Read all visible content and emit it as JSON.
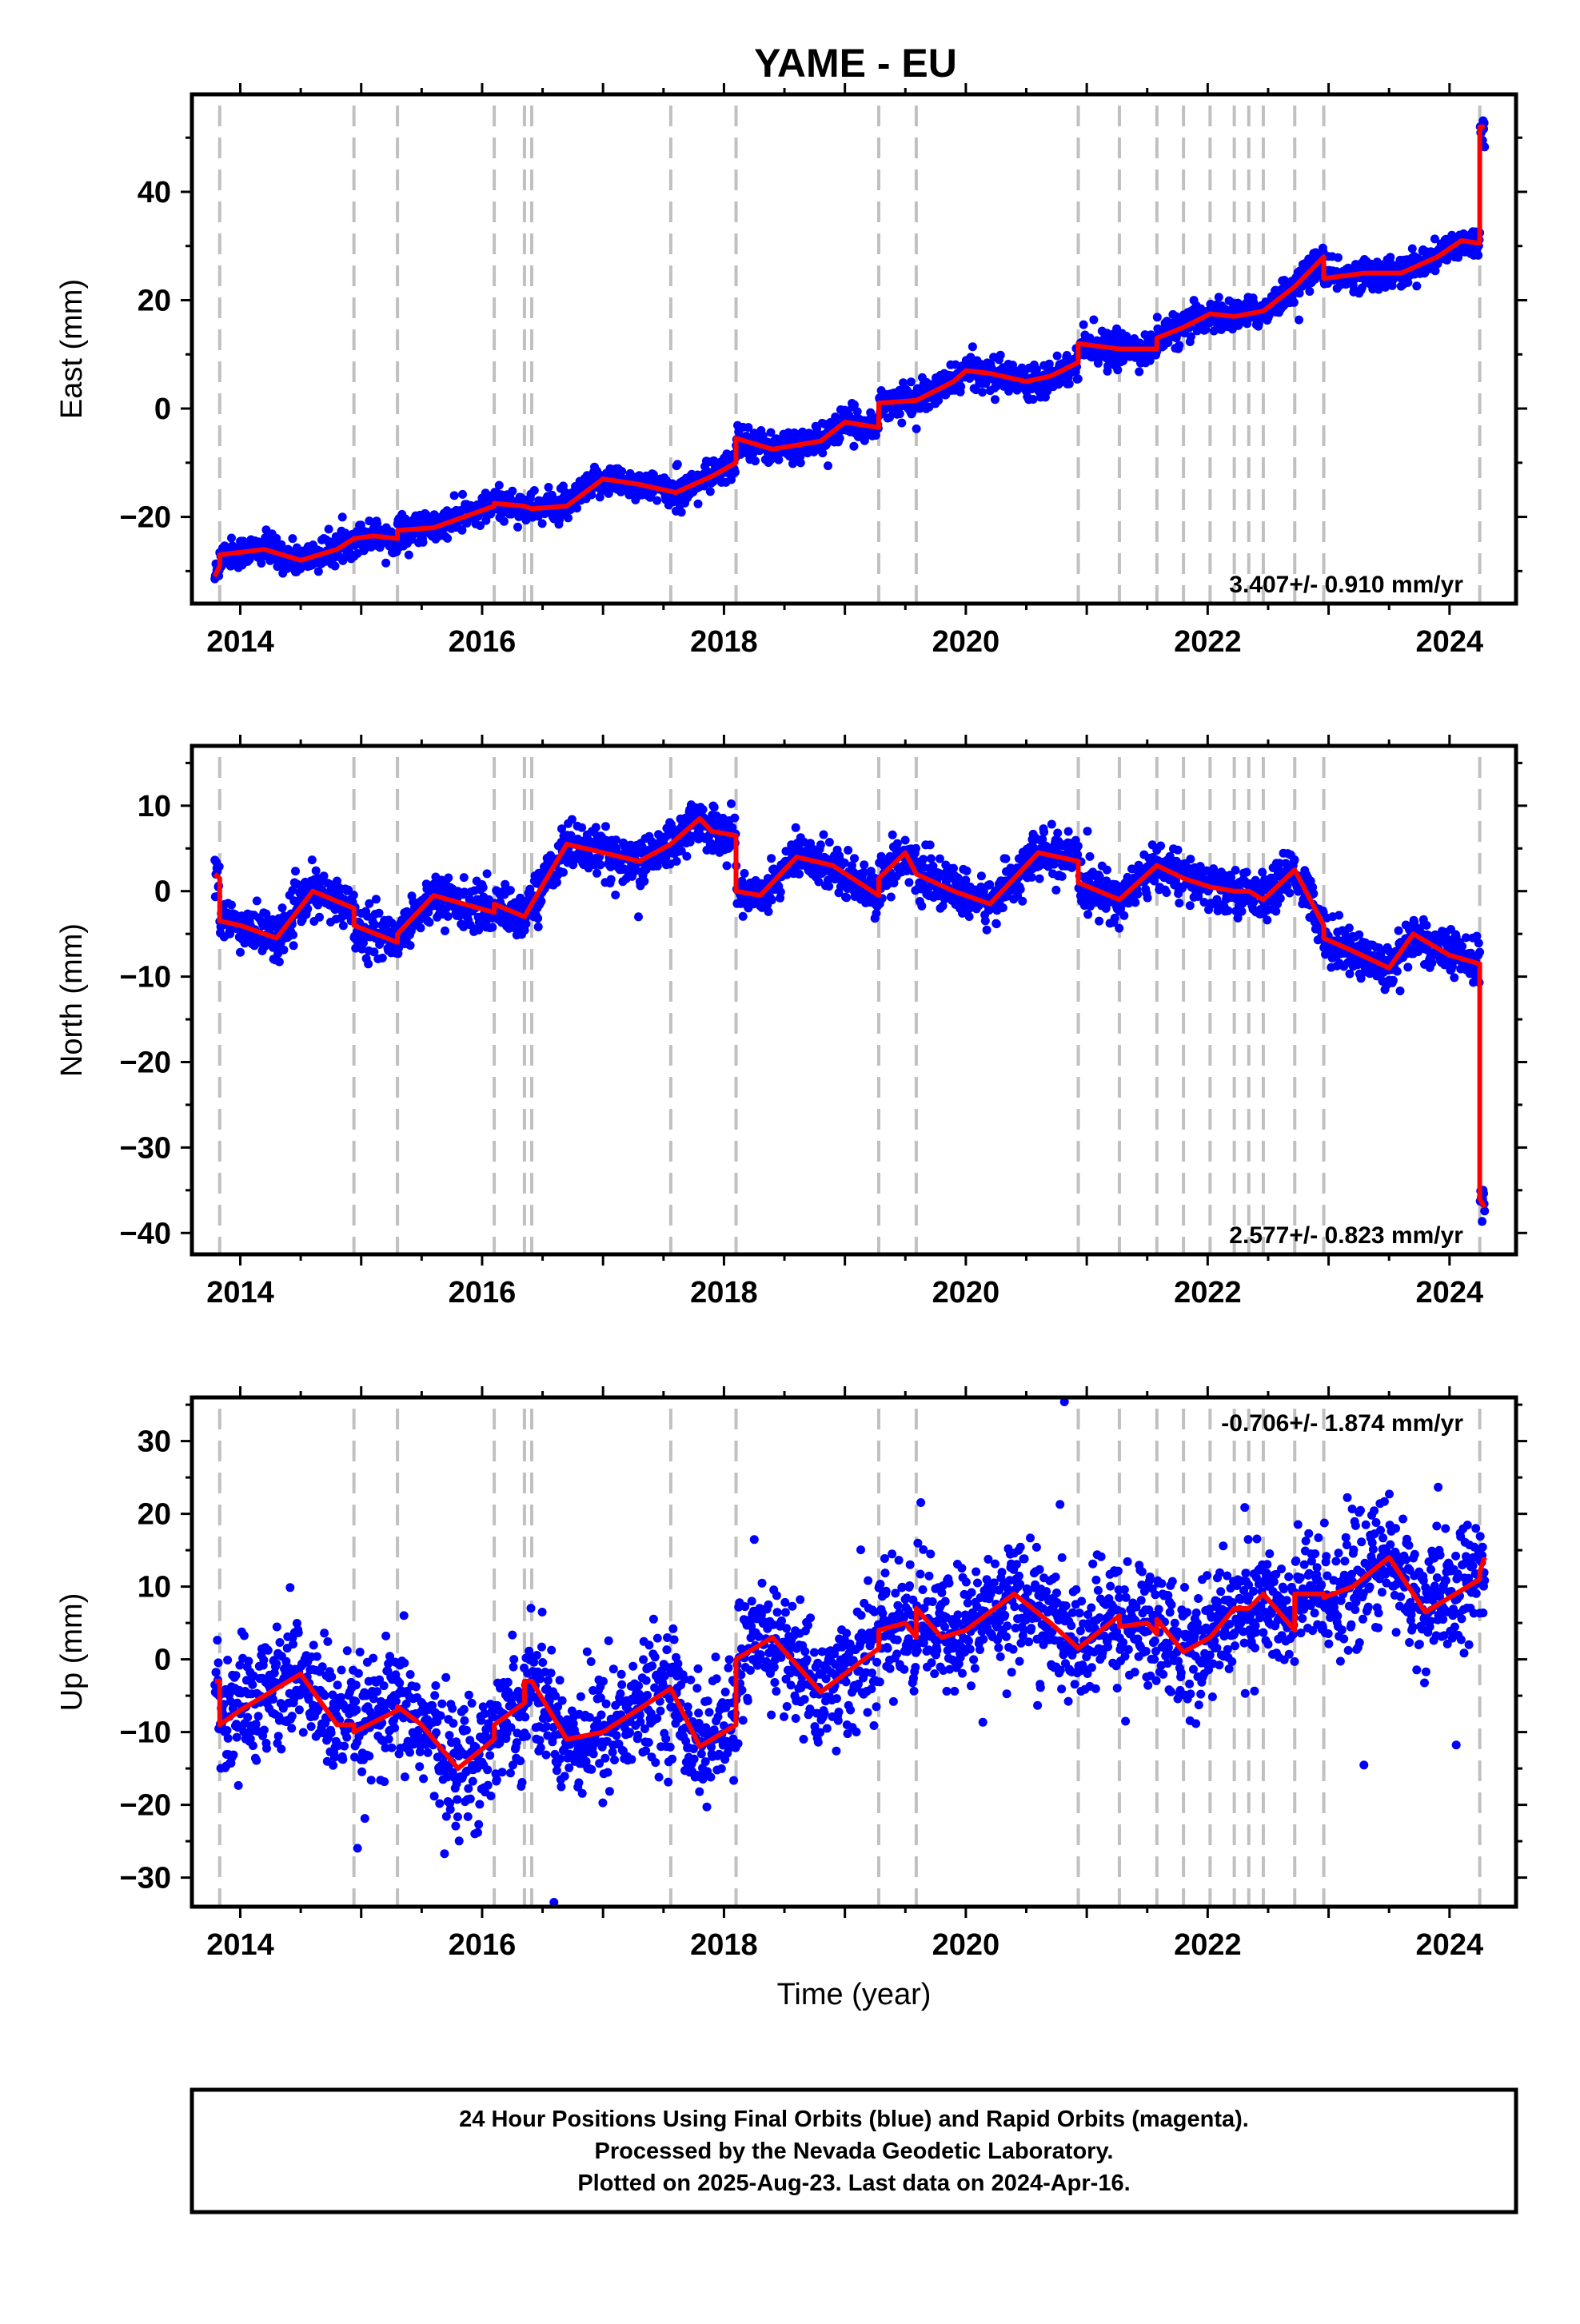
{
  "title": "YAME - EU",
  "colors": {
    "final_points": "#0000ff",
    "model_line": "#ff0000",
    "steps": "#c0c0c0",
    "frame": "#000000"
  },
  "steps": [
    2013.83,
    2014.94,
    2015.3,
    2016.1,
    2016.35,
    2016.41,
    2017.56,
    2018.1,
    2019.28,
    2019.59,
    2020.93,
    2021.27,
    2021.58,
    2021.8,
    2022.02,
    2022.22,
    2022.34,
    2022.46,
    2022.72,
    2022.96,
    2024.25
  ],
  "footer": {
    "line1": "24 Hour Positions Using Final Orbits (blue) and Rapid Orbits (magenta).",
    "line2": "Processed by the Nevada Geodetic Laboratory.",
    "line3": "Plotted on 2025-Aug-23. Last data on 2024-Apr-16."
  },
  "chart_data": [
    {
      "type": "scatter",
      "component": "east",
      "ylabel": "East (mm)",
      "xlabel": "",
      "xlim": [
        2013.6,
        2024.55
      ],
      "ylim": [
        -36,
        58
      ],
      "x_ticks": [
        2014,
        2016,
        2018,
        2020,
        2022,
        2024
      ],
      "y_ticks": [
        -20,
        0,
        20,
        40
      ],
      "rate": "3.407+/- 0.910 mm/yr",
      "rate_position": "bottom-right",
      "grid": false,
      "model": [
        [
          2013.79,
          -31
        ],
        [
          2013.83,
          -29
        ],
        [
          2013.83,
          -27
        ],
        [
          2014.2,
          -26
        ],
        [
          2014.5,
          -28
        ],
        [
          2014.8,
          -26
        ],
        [
          2014.94,
          -24
        ],
        [
          2015.1,
          -23.5
        ],
        [
          2015.3,
          -24
        ],
        [
          2015.3,
          -22.5
        ],
        [
          2015.6,
          -22
        ],
        [
          2016.1,
          -18
        ],
        [
          2016.1,
          -17.5
        ],
        [
          2016.35,
          -18
        ],
        [
          2016.41,
          -18.5
        ],
        [
          2016.7,
          -18
        ],
        [
          2017.0,
          -13
        ],
        [
          2017.3,
          -14
        ],
        [
          2017.6,
          -15.5
        ],
        [
          2017.9,
          -12.5
        ],
        [
          2018.1,
          -10
        ],
        [
          2018.1,
          -5.5
        ],
        [
          2018.4,
          -7.5
        ],
        [
          2018.8,
          -6
        ],
        [
          2019.0,
          -2.5
        ],
        [
          2019.28,
          -3.5
        ],
        [
          2019.28,
          1
        ],
        [
          2019.59,
          1.5
        ],
        [
          2019.9,
          5
        ],
        [
          2020.0,
          7
        ],
        [
          2020.2,
          6.5
        ],
        [
          2020.5,
          5
        ],
        [
          2020.7,
          6
        ],
        [
          2020.93,
          8.5
        ],
        [
          2020.93,
          12
        ],
        [
          2021.27,
          11
        ],
        [
          2021.58,
          11
        ],
        [
          2021.58,
          13
        ],
        [
          2021.8,
          15
        ],
        [
          2022.02,
          17.5
        ],
        [
          2022.22,
          17
        ],
        [
          2022.34,
          17.5
        ],
        [
          2022.46,
          18
        ],
        [
          2022.72,
          22.5
        ],
        [
          2022.96,
          28
        ],
        [
          2022.96,
          24
        ],
        [
          2023.3,
          25
        ],
        [
          2023.6,
          25
        ],
        [
          2023.9,
          28
        ],
        [
          2024.1,
          31
        ],
        [
          2024.25,
          30.5
        ],
        [
          2024.25,
          52
        ],
        [
          2024.29,
          52
        ]
      ]
    },
    {
      "type": "scatter",
      "component": "north",
      "ylabel": "North (mm)",
      "xlabel": "",
      "xlim": [
        2013.6,
        2024.55
      ],
      "ylim": [
        -42.5,
        17
      ],
      "x_ticks": [
        2014,
        2016,
        2018,
        2020,
        2022,
        2024
      ],
      "y_ticks": [
        -40,
        -30,
        -20,
        -10,
        0,
        10
      ],
      "rate": "2.577+/- 0.823 mm/yr",
      "rate_position": "bottom-right",
      "grid": false,
      "model": [
        [
          2013.79,
          2
        ],
        [
          2013.83,
          1.5
        ],
        [
          2013.83,
          -3.5
        ],
        [
          2014.0,
          -4
        ],
        [
          2014.3,
          -5.5
        ],
        [
          2014.6,
          0
        ],
        [
          2014.94,
          -2
        ],
        [
          2014.94,
          -4
        ],
        [
          2015.3,
          -6
        ],
        [
          2015.3,
          -5
        ],
        [
          2015.6,
          -0.5
        ],
        [
          2016.1,
          -2.5
        ],
        [
          2016.1,
          -1.5
        ],
        [
          2016.35,
          -3
        ],
        [
          2016.41,
          -1.5
        ],
        [
          2016.7,
          5.5
        ],
        [
          2017.0,
          4.5
        ],
        [
          2017.3,
          3.5
        ],
        [
          2017.56,
          5.5
        ],
        [
          2017.8,
          8.5
        ],
        [
          2017.9,
          7
        ],
        [
          2018.1,
          6.5
        ],
        [
          2018.1,
          0
        ],
        [
          2018.3,
          -0.5
        ],
        [
          2018.6,
          4
        ],
        [
          2018.9,
          3
        ],
        [
          2019.28,
          -0.5
        ],
        [
          2019.28,
          1.5
        ],
        [
          2019.5,
          4.5
        ],
        [
          2019.59,
          2
        ],
        [
          2019.9,
          0
        ],
        [
          2020.2,
          -1.5
        ],
        [
          2020.6,
          4.5
        ],
        [
          2020.93,
          3.5
        ],
        [
          2020.93,
          1
        ],
        [
          2021.27,
          -1
        ],
        [
          2021.58,
          3
        ],
        [
          2021.8,
          1.5
        ],
        [
          2022.02,
          0.5
        ],
        [
          2022.22,
          0
        ],
        [
          2022.34,
          0
        ],
        [
          2022.46,
          -1
        ],
        [
          2022.72,
          2.5
        ],
        [
          2022.96,
          -4
        ],
        [
          2022.96,
          -5.5
        ],
        [
          2023.2,
          -7
        ],
        [
          2023.5,
          -9
        ],
        [
          2023.7,
          -5
        ],
        [
          2024.0,
          -7.5
        ],
        [
          2024.25,
          -8.5
        ],
        [
          2024.25,
          -36
        ],
        [
          2024.29,
          -37
        ]
      ]
    },
    {
      "type": "scatter",
      "component": "up",
      "ylabel": "Up (mm)",
      "xlabel": "Time (year)",
      "xlim": [
        2013.6,
        2024.55
      ],
      "ylim": [
        -34,
        36
      ],
      "x_ticks": [
        2014,
        2016,
        2018,
        2020,
        2022,
        2024
      ],
      "y_ticks": [
        -30,
        -20,
        -10,
        0,
        10,
        20,
        30
      ],
      "rate": "-0.706+/- 1.874 mm/yr",
      "rate_position": "top-right",
      "grid": false,
      "model": [
        [
          2013.79,
          -3
        ],
        [
          2013.83,
          -3
        ],
        [
          2013.83,
          -9
        ],
        [
          2014.0,
          -7
        ],
        [
          2014.3,
          -4
        ],
        [
          2014.5,
          -2
        ],
        [
          2014.8,
          -9
        ],
        [
          2014.94,
          -9
        ],
        [
          2014.94,
          -10
        ],
        [
          2015.3,
          -7
        ],
        [
          2015.3,
          -6.5
        ],
        [
          2015.5,
          -9
        ],
        [
          2015.8,
          -15
        ],
        [
          2016.1,
          -11
        ],
        [
          2016.1,
          -9
        ],
        [
          2016.35,
          -6
        ],
        [
          2016.35,
          -3
        ],
        [
          2016.41,
          -3
        ],
        [
          2016.7,
          -11
        ],
        [
          2017.0,
          -10
        ],
        [
          2017.56,
          -4
        ],
        [
          2017.8,
          -12
        ],
        [
          2018.1,
          -9
        ],
        [
          2018.1,
          0
        ],
        [
          2018.4,
          3
        ],
        [
          2018.8,
          -4.5
        ],
        [
          2019.28,
          1.5
        ],
        [
          2019.28,
          4
        ],
        [
          2019.5,
          5
        ],
        [
          2019.59,
          3
        ],
        [
          2019.59,
          7
        ],
        [
          2019.8,
          3
        ],
        [
          2020.0,
          4
        ],
        [
          2020.4,
          9
        ],
        [
          2020.7,
          5
        ],
        [
          2020.93,
          1.5
        ],
        [
          2021.27,
          6
        ],
        [
          2021.27,
          4.5
        ],
        [
          2021.5,
          5
        ],
        [
          2021.58,
          3.5
        ],
        [
          2021.58,
          5.5
        ],
        [
          2021.8,
          1
        ],
        [
          2022.02,
          3
        ],
        [
          2022.22,
          7
        ],
        [
          2022.34,
          7
        ],
        [
          2022.46,
          9
        ],
        [
          2022.72,
          4
        ],
        [
          2022.72,
          9
        ],
        [
          2022.96,
          9
        ],
        [
          2022.96,
          8.5
        ],
        [
          2023.2,
          10
        ],
        [
          2023.5,
          14
        ],
        [
          2023.8,
          6.5
        ],
        [
          2024.25,
          11
        ],
        [
          2024.25,
          12
        ],
        [
          2024.29,
          14
        ]
      ]
    }
  ]
}
